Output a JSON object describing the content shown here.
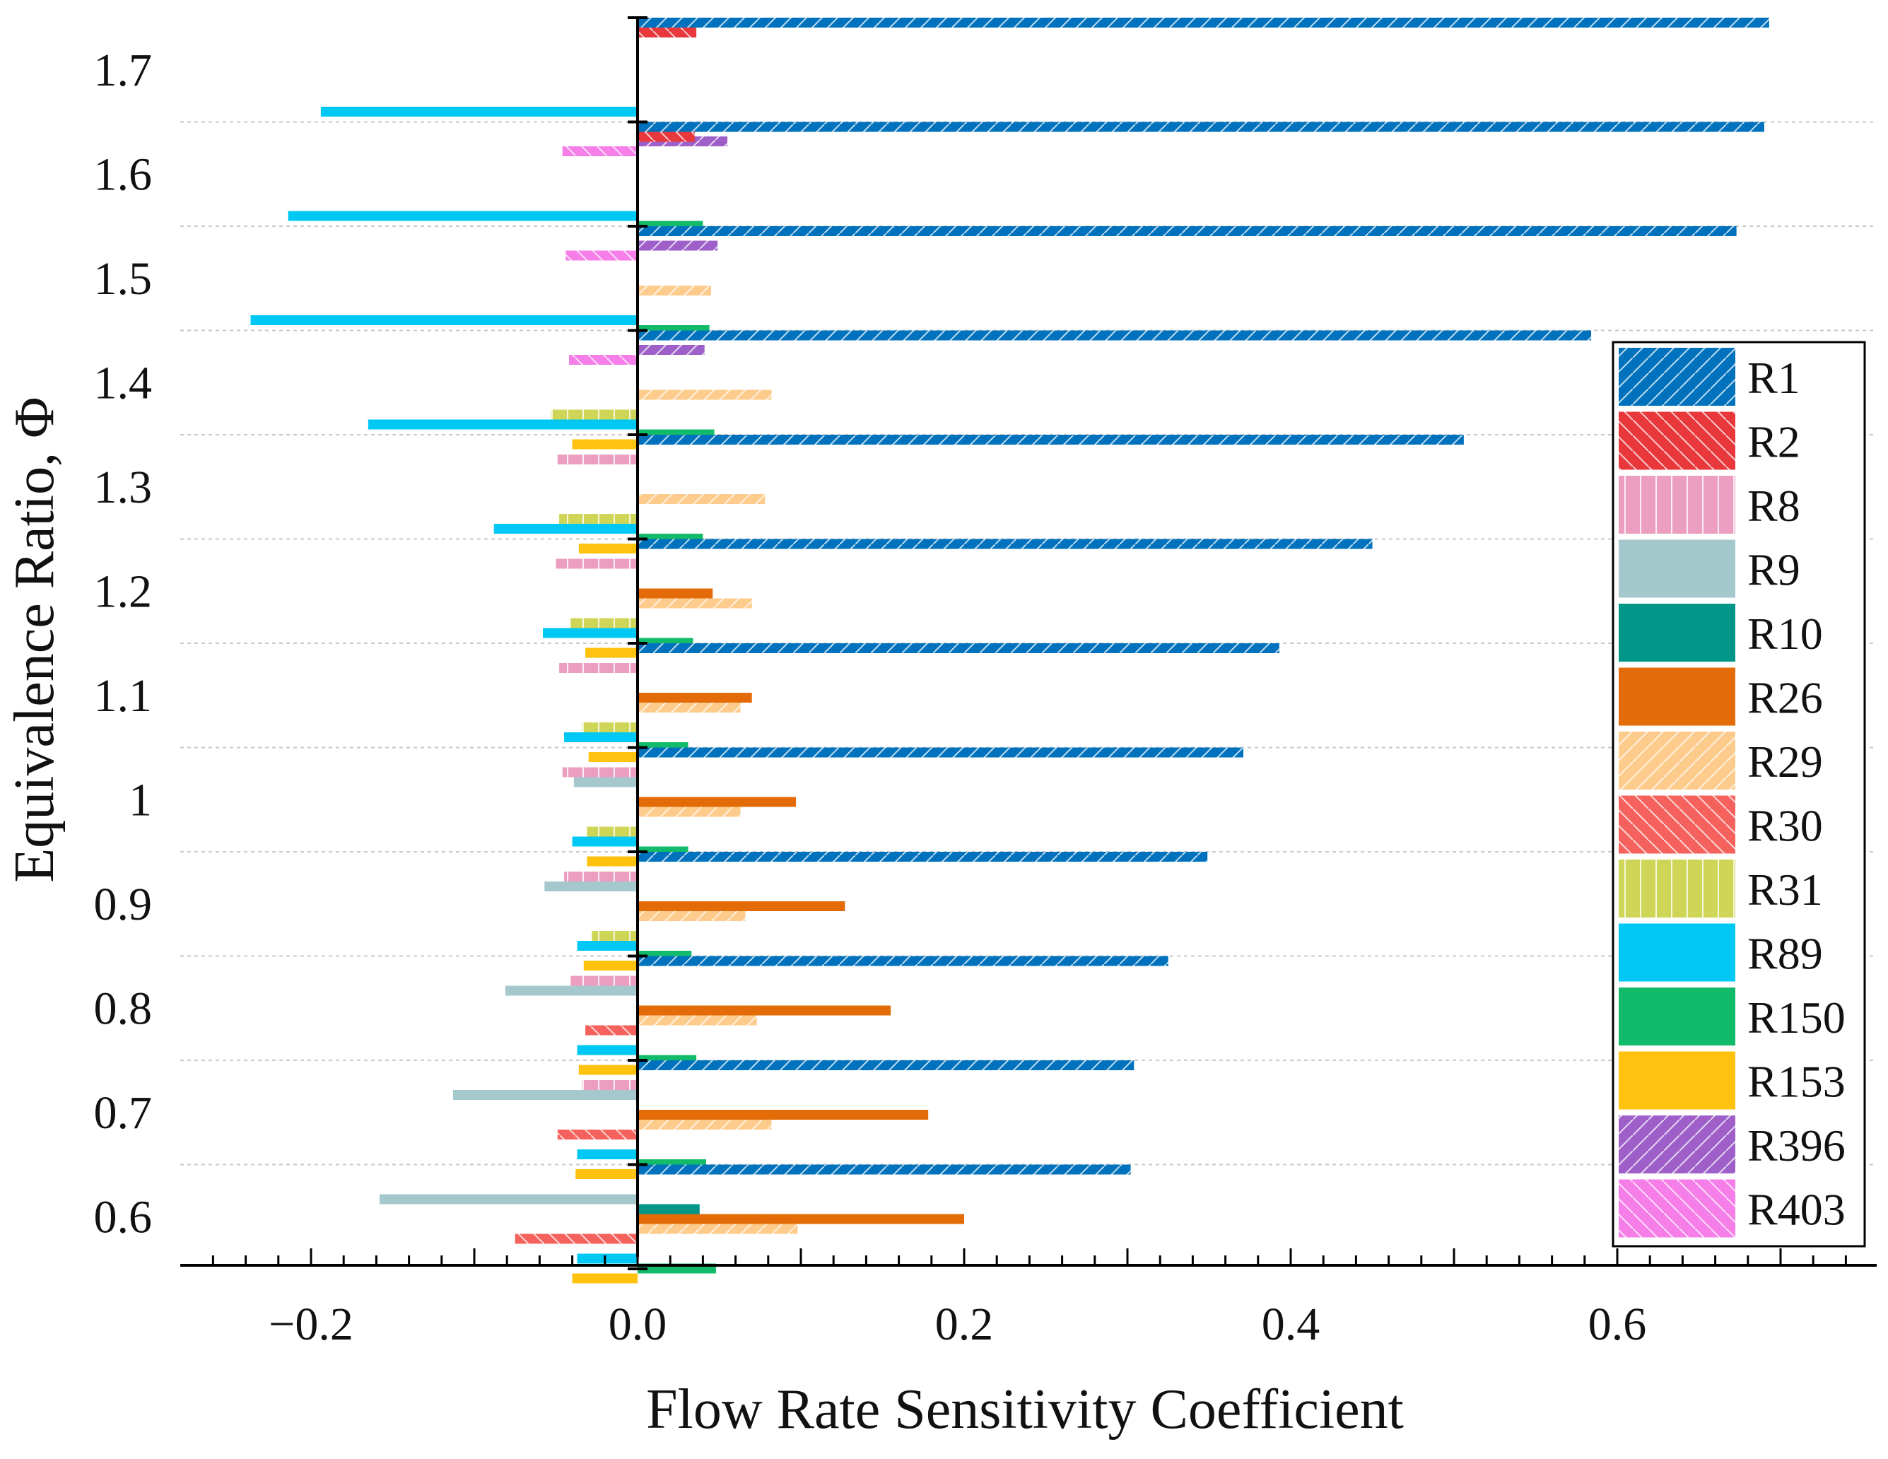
{
  "chart_data": {
    "type": "bar",
    "orientation": "horizontal",
    "xlabel": "Flow Rate Sensitivity Coefficient",
    "ylabel": "Equivalence Ratio, Φ",
    "xlim": [
      -0.28,
      0.76
    ],
    "xticks": [
      {
        "value": -0.2,
        "label": "−0.2"
      },
      {
        "value": 0.0,
        "label": "0.0"
      },
      {
        "value": 0.2,
        "label": "0.2"
      },
      {
        "value": 0.4,
        "label": "0.4"
      },
      {
        "value": 0.6,
        "label": "0.6"
      }
    ],
    "categories": [
      "1.7",
      "1.6",
      "1.5",
      "1.4",
      "1.3",
      "1.2",
      "1.1",
      "1",
      "0.9",
      "0.8",
      "0.7",
      "0.6"
    ],
    "legend_position": "right",
    "series": [
      {
        "name": "R1",
        "color": "#0072bd",
        "pattern": "diag-right",
        "values": [
          0.693,
          0.69,
          0.673,
          0.584,
          0.506,
          0.45,
          0.393,
          0.371,
          0.349,
          0.325,
          0.304,
          0.302
        ]
      },
      {
        "name": "R2",
        "color": "#e8383c",
        "pattern": "diag-left",
        "values": [
          0.036,
          0.035,
          0,
          0,
          0,
          0,
          0,
          0,
          0,
          0,
          0,
          0
        ]
      },
      {
        "name": "R8",
        "color": "#ec9ec1",
        "pattern": "vertical",
        "values": [
          0,
          0,
          0,
          0,
          -0.049,
          -0.05,
          -0.048,
          -0.046,
          -0.045,
          -0.041,
          -0.034,
          0
        ]
      },
      {
        "name": "R9",
        "color": "#a5c8cd",
        "pattern": "none",
        "values": [
          0,
          0,
          0,
          0,
          0,
          0,
          0,
          -0.039,
          -0.057,
          -0.081,
          -0.113,
          -0.158
        ]
      },
      {
        "name": "R10",
        "color": "#009688",
        "pattern": "none",
        "values": [
          0,
          0,
          0,
          0,
          0,
          0,
          0,
          0,
          0,
          0,
          0,
          0.038
        ]
      },
      {
        "name": "R26",
        "color": "#e36c09",
        "pattern": "none",
        "values": [
          0,
          0,
          0,
          0,
          0,
          0.046,
          0.07,
          0.097,
          0.127,
          0.155,
          0.178,
          0.2
        ]
      },
      {
        "name": "R29",
        "color": "#fdcb8b",
        "pattern": "diag-right",
        "values": [
          0,
          0,
          0.045,
          0.082,
          0.078,
          0.07,
          0.063,
          0.063,
          0.066,
          0.073,
          0.082,
          0.098
        ]
      },
      {
        "name": "R30",
        "color": "#f5625d",
        "pattern": "diag-left",
        "values": [
          0,
          0,
          0,
          0,
          0,
          0,
          0,
          0,
          0,
          -0.032,
          -0.049,
          -0.075
        ]
      },
      {
        "name": "R31",
        "color": "#cfd556",
        "pattern": "vertical",
        "values": [
          0,
          0,
          0,
          -0.053,
          -0.048,
          -0.041,
          -0.034,
          -0.031,
          -0.028,
          0,
          0,
          0
        ]
      },
      {
        "name": "R89",
        "color": "#00c8f4",
        "pattern": "none",
        "values": [
          -0.194,
          -0.214,
          -0.237,
          -0.165,
          -0.088,
          -0.058,
          -0.045,
          -0.04,
          -0.037,
          -0.037,
          -0.037,
          -0.037
        ]
      },
      {
        "name": "R150",
        "color": "#12bb6a",
        "pattern": "none",
        "values": [
          0,
          0.04,
          0.044,
          0.047,
          0.04,
          0.034,
          0.031,
          0.031,
          0.033,
          0.036,
          0.042,
          0.048
        ]
      },
      {
        "name": "R153",
        "color": "#ffc20e",
        "pattern": "none",
        "values": [
          0,
          0,
          0,
          -0.04,
          -0.036,
          -0.032,
          -0.03,
          -0.031,
          -0.033,
          -0.036,
          -0.038,
          -0.04
        ]
      },
      {
        "name": "R396",
        "color": "#9e5fc9",
        "pattern": "diag-right",
        "values": [
          0.055,
          0.049,
          0.041,
          0,
          0,
          0,
          0,
          0,
          0,
          0,
          0,
          0
        ]
      },
      {
        "name": "R403",
        "color": "#f57ee8",
        "pattern": "diag-left",
        "values": [
          -0.046,
          -0.044,
          -0.042,
          0,
          0,
          0,
          0,
          0,
          0,
          0,
          0,
          0
        ]
      }
    ]
  }
}
